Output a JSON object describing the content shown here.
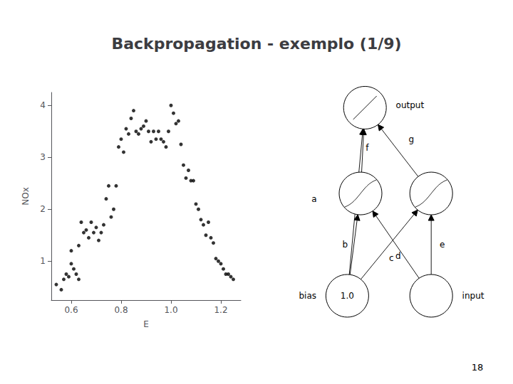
{
  "chart_data": {
    "type": "scatter",
    "title": "Backpropagation - exemplo (1/9)",
    "xlabel": "E",
    "ylabel": "NOx",
    "x": [
      0.54,
      0.56,
      0.57,
      0.58,
      0.59,
      0.6,
      0.6,
      0.61,
      0.62,
      0.63,
      0.63,
      0.64,
      0.65,
      0.66,
      0.67,
      0.68,
      0.69,
      0.7,
      0.71,
      0.72,
      0.73,
      0.74,
      0.75,
      0.76,
      0.77,
      0.78,
      0.79,
      0.8,
      0.81,
      0.82,
      0.83,
      0.84,
      0.85,
      0.86,
      0.87,
      0.88,
      0.89,
      0.9,
      0.91,
      0.92,
      0.93,
      0.94,
      0.95,
      0.96,
      0.97,
      0.98,
      0.99,
      1.0,
      1.01,
      1.02,
      1.03,
      1.04,
      1.05,
      1.06,
      1.07,
      1.08,
      1.09,
      1.1,
      1.11,
      1.12,
      1.13,
      1.14,
      1.15,
      1.16,
      1.17,
      1.18,
      1.19,
      1.2,
      1.21,
      1.22,
      1.23,
      1.24,
      1.25
    ],
    "values": [
      0.55,
      0.45,
      0.65,
      0.75,
      0.7,
      0.95,
      1.2,
      0.85,
      0.75,
      0.65,
      1.3,
      1.75,
      1.55,
      1.6,
      1.45,
      1.75,
      1.55,
      1.65,
      1.4,
      1.55,
      1.7,
      2.2,
      2.45,
      1.85,
      2.0,
      2.45,
      3.2,
      3.35,
      3.1,
      3.55,
      3.45,
      3.75,
      3.9,
      3.5,
      3.45,
      3.55,
      3.6,
      3.7,
      3.5,
      3.3,
      3.5,
      3.35,
      3.5,
      3.35,
      3.3,
      3.2,
      3.5,
      4.0,
      3.85,
      3.65,
      3.7,
      3.25,
      2.85,
      2.6,
      2.75,
      2.55,
      2.55,
      2.1,
      2.0,
      1.8,
      1.7,
      1.5,
      1.75,
      1.45,
      1.35,
      1.05,
      1.0,
      0.95,
      0.85,
      0.75,
      0.75,
      0.7,
      0.65
    ],
    "xlim": [
      0.52,
      1.28
    ],
    "ylim": [
      0.25,
      4.25
    ],
    "xticks": [
      0.6,
      0.8,
      {
        "value": 1.0,
        "label": "1.0"
      },
      1.2
    ],
    "yticks": [
      1,
      2,
      3,
      4
    ],
    "grid": false,
    "color": "#000000",
    "marker": "circle",
    "annotations": [
      "18",
      "output",
      "bias",
      "input",
      "1.0",
      "a",
      "f",
      "g",
      "b",
      "c",
      "d",
      "e"
    ]
  }
}
